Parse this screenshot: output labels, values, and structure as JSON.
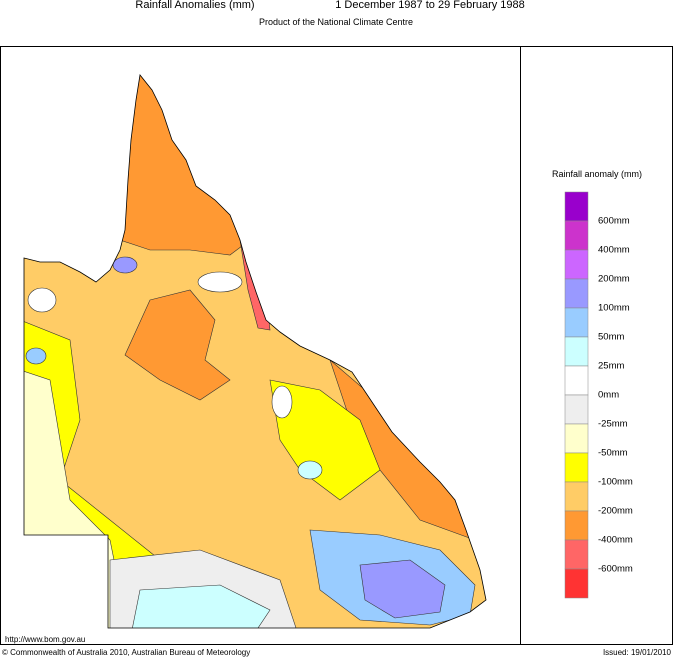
{
  "header": {
    "title": "Rainfall Anomalies (mm)",
    "period": "1 December 1987 to 29 February 1988",
    "subtitle": "Product of the National Climate Centre"
  },
  "legend": {
    "title": "Rainfall anomaly (mm)",
    "colors": [
      "#9900cc",
      "#cc33cc",
      "#cc66ff",
      "#9999ff",
      "#99ccff",
      "#ccffff",
      "#ffffff",
      "#eeeeee",
      "#ffffcc",
      "#ffff00",
      "#ffcc66",
      "#ff9933",
      "#ff6666",
      "#ff3333"
    ],
    "labels": [
      "600mm",
      "400mm",
      "200mm",
      "100mm",
      "50mm",
      "25mm",
      "0mm",
      "-25mm",
      "-50mm",
      "-100mm",
      "-200mm",
      "-400mm",
      "-600mm"
    ]
  },
  "footer": {
    "url": "http://www.bom.gov.au",
    "copyright": "© Commonwealth of Australia 2010, Australian Bureau of Meteorology",
    "issued": "Issued: 19/01/2010"
  }
}
